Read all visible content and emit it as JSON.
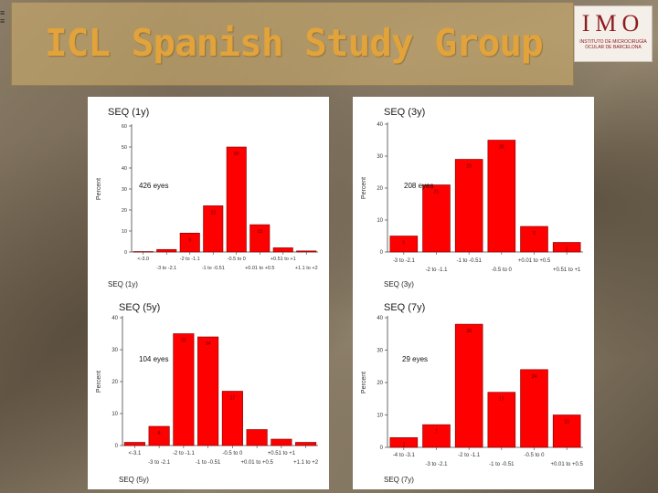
{
  "slide": {
    "title": "ICL Spanish Study Group",
    "logo": {
      "text": "IMO",
      "subtext": "INSTITUTO DE MICROCIRUGÍA OCULAR DE BARCELONA",
      "color": "#8e1b22"
    },
    "title_color": "#e1a33a"
  },
  "chart_data": [
    {
      "id": "seq1",
      "type": "bar",
      "title": "SEQ (1y)",
      "xlabel": "SEQ (1y)",
      "ylabel": "Percent",
      "annotation": "426 eyes",
      "ylim": [
        0,
        60
      ],
      "yticks": [
        0,
        10,
        20,
        30,
        40,
        50,
        60
      ],
      "categories": [
        "<-3.0",
        "-3 to -2.1",
        "-2 to -1.1",
        "-1 to -0.51",
        "-0.5 to 0",
        "+0.01 to +0.5",
        "+0.51 to +1",
        "+1.1 to +2"
      ],
      "category_label_rows": [
        0,
        1,
        0,
        1,
        0,
        1,
        0,
        1
      ],
      "values": [
        0.2,
        1.2,
        9,
        22,
        50,
        13,
        2,
        0.5
      ],
      "data_labels": [
        "",
        "",
        "9",
        "22",
        "50",
        "13",
        "",
        ""
      ],
      "color": "#ff0000"
    },
    {
      "id": "seq3",
      "type": "bar",
      "title": "SEQ (3y)",
      "xlabel": "SEQ (3y)",
      "ylabel": "Percent",
      "annotation": "208 eyes",
      "ylim": [
        0,
        40
      ],
      "yticks": [
        0,
        10,
        20,
        30,
        40
      ],
      "categories": [
        "-3 to -2.1",
        "-2 to -1.1",
        "-1 to -0.51",
        "-0.5 to 0",
        "+0.01 to +0.5",
        "+0.51 to +1"
      ],
      "category_label_rows": [
        0,
        1,
        0,
        1,
        0,
        1
      ],
      "values": [
        5,
        21,
        29,
        35,
        8,
        3
      ],
      "data_labels": [
        "5",
        "21",
        "29",
        "35",
        "8",
        "3"
      ],
      "color": "#ff0000"
    },
    {
      "id": "seq5",
      "type": "bar",
      "title": "SEQ (5y)",
      "xlabel": "SEQ (5y)",
      "ylabel": "Percent",
      "annotation": "104 eyes",
      "ylim": [
        0,
        40
      ],
      "yticks": [
        0,
        10,
        20,
        30,
        40
      ],
      "categories": [
        "<-3.1",
        "-3 to -2.1",
        "-2 to -1.1",
        "-1 to -0.51",
        "-0.5 to 0",
        "+0.01 to +0.5",
        "+0.51 to +1",
        "+1.1 to +2"
      ],
      "category_label_rows": [
        0,
        1,
        0,
        1,
        0,
        1,
        0,
        1
      ],
      "values": [
        1,
        6,
        35,
        34,
        17,
        5,
        2,
        1
      ],
      "data_labels": [
        "",
        "6",
        "35",
        "34",
        "17",
        "",
        "",
        ""
      ],
      "color": "#ff0000"
    },
    {
      "id": "seq7",
      "type": "bar",
      "title": "SEQ (7y)",
      "xlabel": "SEQ (7y)",
      "ylabel": "Percent",
      "annotation": "29 eyes",
      "ylim": [
        0,
        40
      ],
      "yticks": [
        0,
        10,
        20,
        30,
        40
      ],
      "categories": [
        "-4 to -3.1",
        "-3 to -2.1",
        "-2 to -1.1",
        "-1 to -0.51",
        "-0.5 to 0",
        "+0.01 to +0.5"
      ],
      "category_label_rows": [
        0,
        1,
        0,
        1,
        0,
        1
      ],
      "values": [
        3,
        7,
        38,
        17,
        24,
        10
      ],
      "data_labels": [
        "3",
        "7",
        "38",
        "17",
        "24",
        "10"
      ],
      "color": "#ff0000"
    }
  ]
}
